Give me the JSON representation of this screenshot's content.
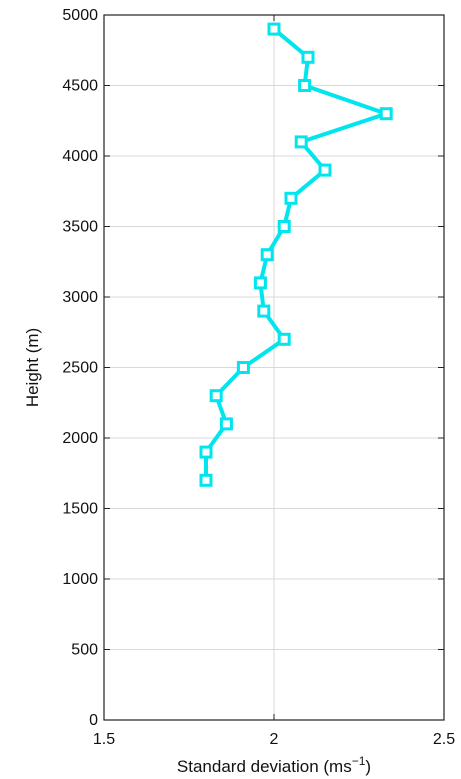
{
  "chart_data": {
    "type": "line",
    "title": "",
    "xlabel": "Standard deviation (ms",
    "xlabel_sup": "−1",
    "xlabel_end": ")",
    "ylabel": "Height (m)",
    "xlim": [
      1.5,
      2.5
    ],
    "ylim": [
      0,
      5000
    ],
    "xticks": [
      1.5,
      2,
      2.5
    ],
    "xtick_labels": [
      "1.5",
      "2",
      "2.5"
    ],
    "yticks": [
      0,
      500,
      1000,
      1500,
      2000,
      2500,
      3000,
      3500,
      4000,
      4500,
      5000
    ],
    "ytick_labels": [
      "0",
      "500",
      "1000",
      "1500",
      "2000",
      "2500",
      "3000",
      "3500",
      "4000",
      "4500",
      "5000"
    ],
    "grid": true,
    "series": [
      {
        "color": "#00e5ee",
        "marker": "square",
        "points": [
          {
            "x": 1.8,
            "y": 1700
          },
          {
            "x": 1.8,
            "y": 1900
          },
          {
            "x": 1.86,
            "y": 2100
          },
          {
            "x": 1.83,
            "y": 2300
          },
          {
            "x": 1.91,
            "y": 2500
          },
          {
            "x": 2.03,
            "y": 2700
          },
          {
            "x": 1.97,
            "y": 2900
          },
          {
            "x": 1.96,
            "y": 3100
          },
          {
            "x": 1.98,
            "y": 3300
          },
          {
            "x": 2.03,
            "y": 3500
          },
          {
            "x": 2.05,
            "y": 3700
          },
          {
            "x": 2.15,
            "y": 3900
          },
          {
            "x": 2.08,
            "y": 4100
          },
          {
            "x": 2.33,
            "y": 4300
          },
          {
            "x": 2.09,
            "y": 4500
          },
          {
            "x": 2.1,
            "y": 4700
          },
          {
            "x": 2.0,
            "y": 4900
          }
        ]
      }
    ]
  }
}
